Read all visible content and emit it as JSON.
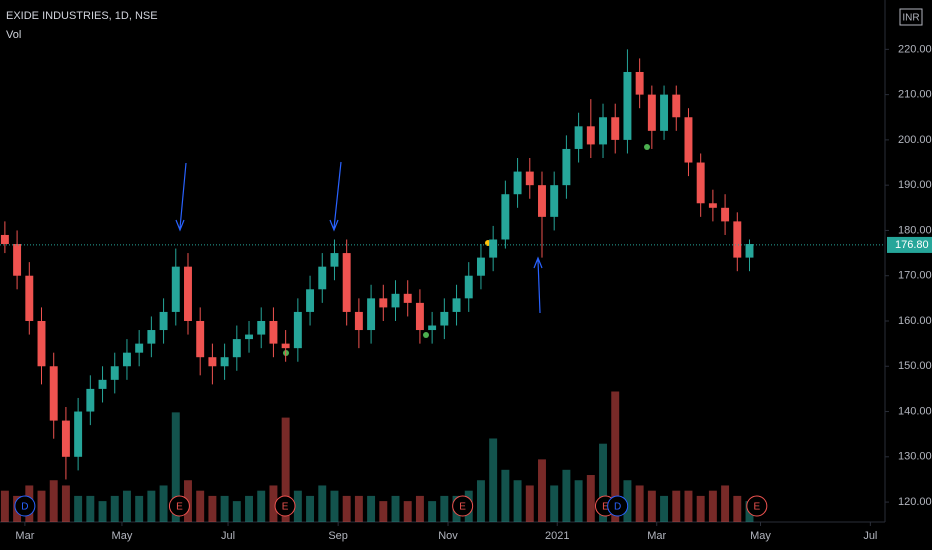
{
  "chart_data": {
    "type": "candlestick",
    "title": "EXIDE INDUSTRIES, 1D, NSE",
    "subtitle": "Vol",
    "currency": "INR",
    "categories": [
      null,
      null,
      null,
      null,
      null,
      null,
      null,
      null,
      null,
      null,
      null,
      null,
      null,
      null,
      null,
      null,
      null,
      null,
      null,
      null,
      null,
      null,
      null,
      null,
      null,
      null,
      null,
      null,
      null,
      null,
      null,
      null,
      null,
      null,
      null,
      null,
      null,
      null,
      null,
      null,
      null,
      null,
      null,
      null,
      null,
      null,
      null,
      null,
      null,
      null,
      null,
      null,
      null,
      null,
      null,
      null,
      null,
      null,
      null,
      null,
      null,
      null
    ],
    "open": [
      179,
      177,
      170,
      160,
      150,
      138,
      130,
      140,
      145,
      147,
      150,
      153,
      155,
      158,
      162,
      172,
      160,
      152,
      150,
      152,
      156,
      157,
      160,
      155,
      154,
      162,
      167,
      172,
      175,
      162,
      158,
      165,
      163,
      166,
      164,
      158,
      159,
      162,
      165,
      170,
      174,
      178,
      188,
      193,
      190,
      183,
      190,
      198,
      203,
      199,
      205,
      200,
      215,
      210,
      202,
      210,
      205,
      195,
      186,
      185,
      182,
      174
    ],
    "high": [
      182,
      180,
      173,
      163,
      153,
      141,
      143,
      148,
      150,
      153,
      156,
      158,
      161,
      165,
      176,
      175,
      163,
      155,
      155,
      159,
      160,
      163,
      163,
      158,
      165,
      170,
      175,
      178,
      178,
      165,
      168,
      168,
      169,
      169,
      167,
      162,
      165,
      168,
      173,
      177,
      181,
      191,
      196,
      196,
      193,
      193,
      201,
      206,
      209,
      208,
      208,
      220,
      218,
      212,
      212,
      212,
      207,
      197,
      189,
      188,
      184,
      178
    ],
    "low": [
      175,
      167,
      157,
      146,
      134,
      125,
      127,
      137,
      142,
      144,
      147,
      150,
      152,
      155,
      159,
      157,
      148,
      146,
      147,
      149,
      153,
      154,
      152,
      151,
      151,
      159,
      164,
      169,
      159,
      154,
      155,
      160,
      160,
      161,
      155,
      155,
      156,
      159,
      162,
      167,
      171,
      176,
      185,
      187,
      174,
      180,
      187,
      195,
      196,
      196,
      197,
      197,
      207,
      198,
      200,
      202,
      192,
      183,
      182,
      179,
      171,
      171
    ],
    "close": [
      177,
      170,
      160,
      150,
      138,
      130,
      140,
      145,
      147,
      150,
      153,
      155,
      158,
      162,
      172,
      160,
      152,
      150,
      152,
      156,
      157,
      160,
      155,
      154,
      162,
      167,
      172,
      175,
      162,
      158,
      165,
      163,
      166,
      164,
      158,
      159,
      162,
      165,
      170,
      174,
      178,
      188,
      193,
      190,
      183,
      190,
      198,
      203,
      199,
      205,
      200,
      215,
      210,
      202,
      210,
      205,
      195,
      186,
      185,
      182,
      174,
      177
    ],
    "volume": [
      6,
      5,
      7,
      6,
      8,
      7,
      5,
      5,
      4,
      5,
      6,
      5,
      6,
      7,
      21,
      8,
      6,
      5,
      5,
      4,
      5,
      6,
      7,
      20,
      6,
      5,
      7,
      6,
      5,
      5,
      5,
      4,
      5,
      4,
      5,
      4,
      5,
      5,
      6,
      8,
      16,
      10,
      8,
      7,
      12,
      7,
      10,
      8,
      9,
      15,
      25,
      8,
      7,
      6,
      5,
      6,
      6,
      5,
      6,
      7,
      5,
      4
    ],
    "up_color": "#26a69a",
    "down_color": "#ef5350",
    "xlim": [
      -0.4,
      72.1
    ],
    "xticks": [
      {
        "value": 1.64,
        "label": "Mar"
      },
      {
        "value": 9.59,
        "label": "May"
      },
      {
        "value": 18.28,
        "label": "Jul"
      },
      {
        "value": 27.3,
        "label": "Sep"
      },
      {
        "value": 36.3,
        "label": "Nov"
      },
      {
        "value": 45.25,
        "label": "2021"
      },
      {
        "value": 53.4,
        "label": "Mar"
      },
      {
        "value": 61.9,
        "label": "May"
      },
      {
        "value": 70.9,
        "label": "Jul"
      }
    ],
    "ylim": [
      115.6,
      230.9
    ],
    "yticks": [
      {
        "value": 120,
        "label": "120.00"
      },
      {
        "value": 130,
        "label": "130.00"
      },
      {
        "value": 140,
        "label": "140.00"
      },
      {
        "value": 150,
        "label": "150.00"
      },
      {
        "value": 160,
        "label": "160.00"
      },
      {
        "value": 170,
        "label": "170.00"
      },
      {
        "value": 180,
        "label": "180.00"
      },
      {
        "value": 190,
        "label": "190.00"
      },
      {
        "value": 200,
        "label": "200.00"
      },
      {
        "value": 210,
        "label": "210.00"
      },
      {
        "value": 220,
        "label": "220.00"
      }
    ],
    "y2lim": [
      0,
      100
    ],
    "last_price": {
      "value": 176.8,
      "label": "176.80"
    },
    "events": [
      {
        "label": "D",
        "x": 1.64,
        "color": "#2962ff"
      },
      {
        "label": "E",
        "x": 14.3,
        "color": "#ef5350"
      },
      {
        "label": "E",
        "x": 22.95,
        "color": "#ef5350"
      },
      {
        "label": "E",
        "x": 37.5,
        "color": "#ef5350"
      },
      {
        "label": "E",
        "x": 49.2,
        "color": "#ef5350"
      },
      {
        "label": "D",
        "x": 50.2,
        "color": "#2962ff"
      },
      {
        "label": "E",
        "x": 61.6,
        "color": "#ef5350"
      }
    ],
    "grid": false
  }
}
